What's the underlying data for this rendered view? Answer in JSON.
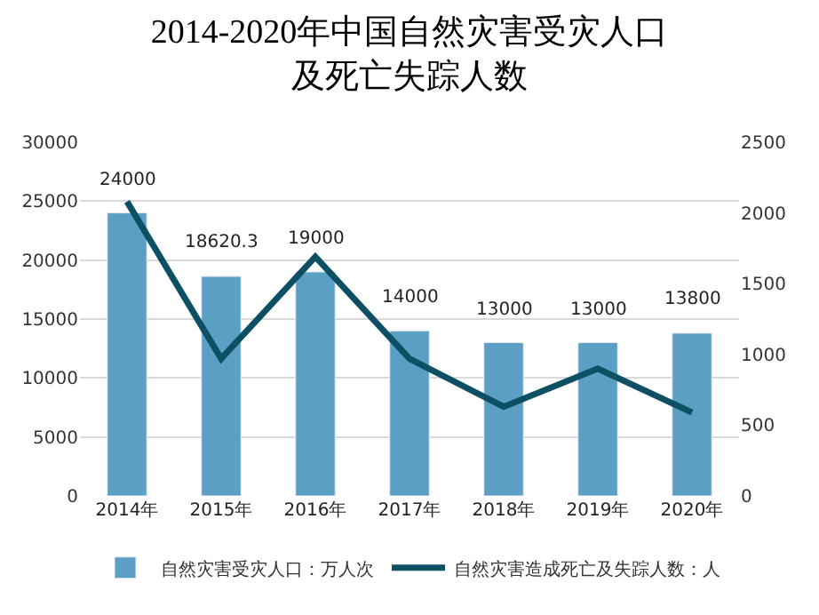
{
  "chart_data": {
    "type": "bar",
    "title": "2014-2020年中国自然灾害受灾人口",
    "subtitle": "及死亡失踪人数",
    "categories": [
      "2014年",
      "2015年",
      "2016年",
      "2017年",
      "2018年",
      "2019年",
      "2020年"
    ],
    "series": [
      {
        "name": "自然灾害受灾人口：万人次",
        "color": "#5b9fc4",
        "values": [
          24000,
          18620.3,
          19000,
          14000,
          13000,
          13000,
          13800
        ],
        "value_labels": [
          "24000",
          "18620.3",
          "19000",
          "14000",
          "13000",
          "13000",
          "13800"
        ]
      },
      {
        "name": "自然灾害造成死亡及失踪人数：人",
        "type": "line",
        "axis": "y2",
        "color": "#0d4f63",
        "values": [
          2080,
          970,
          1690,
          970,
          630,
          900,
          590
        ]
      }
    ],
    "ylim": [
      0,
      30000
    ],
    "yticks": [
      0,
      5000,
      10000,
      15000,
      20000,
      25000,
      30000
    ],
    "y2lim": [
      0,
      2500
    ],
    "y2ticks": [
      0,
      500,
      1000,
      1500,
      2000,
      2500
    ],
    "grid": "y",
    "legend": "bottom",
    "marker": "none",
    "line_style": "solid"
  }
}
